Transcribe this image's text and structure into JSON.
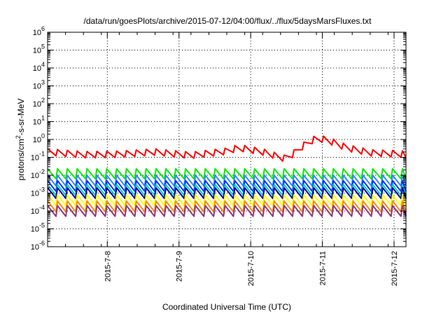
{
  "chart_data": {
    "type": "line",
    "title": "/data/run/goesPlots/archive/2015-07-12/04:00/flux/../flux/5daysMarsFluxes.txt",
    "xlabel": "Coordinated Universal Time (UTC)",
    "ylabel": {
      "prefix": "protons/cm",
      "superscript": "2",
      "suffix": "-s-sr-MeV"
    },
    "yscale": "log",
    "ylim": [
      1e-06,
      1000000.0
    ],
    "y_ticks": [
      {
        "base": "10",
        "exp": "6",
        "value": 1000000.0
      },
      {
        "base": "10",
        "exp": "5",
        "value": 100000.0
      },
      {
        "base": "10",
        "exp": "4",
        "value": 10000.0
      },
      {
        "base": "10",
        "exp": "3",
        "value": 1000.0
      },
      {
        "base": "10",
        "exp": "2",
        "value": 100.0
      },
      {
        "base": "10",
        "exp": "1",
        "value": 10.0
      },
      {
        "base": "10",
        "exp": "0",
        "value": 1.0
      },
      {
        "base": "10",
        "exp": "-1",
        "value": 0.1
      },
      {
        "base": "10",
        "exp": "-2",
        "value": 0.01
      },
      {
        "base": "10",
        "exp": "-3",
        "value": 0.001
      },
      {
        "base": "10",
        "exp": "-4",
        "value": 0.0001
      },
      {
        "base": "10",
        "exp": "-5",
        "value": 1e-05
      },
      {
        "base": "10",
        "exp": "-6",
        "value": 1e-06
      }
    ],
    "xlim": [
      "2015-07-07 04:00",
      "2015-07-12 04:00"
    ],
    "x_ticks": [
      "2015-7-8",
      "2015-7-9",
      "2015-7-10",
      "2015-7-11",
      "2015-7-12"
    ],
    "grid": true,
    "series": [
      {
        "color": "#ff0000",
        "x": [
          "2015-07-07 04:00",
          "2015-07-07 16:00",
          "2015-07-08 04:00",
          "2015-07-08 16:00",
          "2015-07-09 04:00",
          "2015-07-09 16:00",
          "2015-07-09 20:00",
          "2015-07-10 04:00",
          "2015-07-10 12:00",
          "2015-07-10 18:00",
          "2015-07-10 22:00",
          "2015-07-11 02:00",
          "2015-07-11 08:00",
          "2015-07-11 16:00",
          "2015-07-12 04:00"
        ],
        "y": [
          0.2,
          0.14,
          0.15,
          0.2,
          0.13,
          0.22,
          0.35,
          0.2,
          0.08,
          0.5,
          1.2,
          0.9,
          0.35,
          0.18,
          0.15
        ],
        "sawtooth_amp": 0.18
      },
      {
        "color": "#00ee00",
        "x": [
          "2015-07-07 04:00",
          "2015-07-12 04:00"
        ],
        "y": [
          0.012,
          0.012
        ],
        "sawtooth_amp": 0.28
      },
      {
        "color": "#3388ff",
        "x": [
          "2015-07-07 04:00",
          "2015-07-12 04:00"
        ],
        "y": [
          0.005,
          0.005
        ],
        "sawtooth_amp": 0.3
      },
      {
        "color": "#0033ff",
        "x": [
          "2015-07-07 04:00",
          "2015-07-12 04:00"
        ],
        "y": [
          0.0025,
          0.0025
        ],
        "sawtooth_amp": 0.3
      },
      {
        "color": "#00cccc",
        "x": [
          "2015-07-07 04:00",
          "2015-07-12 04:00"
        ],
        "y": [
          0.0015,
          0.0015
        ],
        "sawtooth_amp": 0.3
      },
      {
        "color": "#000099",
        "x": [
          "2015-07-07 04:00",
          "2015-07-12 04:00"
        ],
        "y": [
          0.001,
          0.001
        ],
        "sawtooth_amp": 0.3
      },
      {
        "color": "#ffff00",
        "x": [
          "2015-07-07 04:00",
          "2015-07-12 04:00"
        ],
        "y": [
          0.0004,
          0.0004
        ],
        "sawtooth_amp": 0.3
      },
      {
        "color": "#ff8800",
        "x": [
          "2015-07-07 04:00",
          "2015-07-12 04:00"
        ],
        "y": [
          0.00018,
          0.00018
        ],
        "sawtooth_amp": 0.3
      },
      {
        "color": "#993377",
        "x": [
          "2015-07-07 04:00",
          "2015-07-12 04:00"
        ],
        "y": [
          0.0001,
          0.0001
        ],
        "sawtooth_amp": 0.3
      }
    ],
    "sawtooth_period_hours": 3.3
  }
}
